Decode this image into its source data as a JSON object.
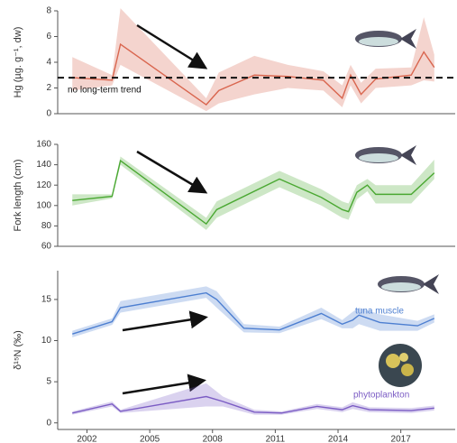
{
  "chart_data": [
    {
      "type": "line",
      "y_label": "Hg (µg. g⁻¹, dw)",
      "annotation": "no long-term trend",
      "hline": 2.8,
      "xlim": [
        2000.6,
        2019.6
      ],
      "ylim": [
        0,
        8
      ],
      "yticks": [
        0,
        2,
        4,
        6,
        8
      ],
      "series": [
        {
          "color": "#d9664f",
          "x": [
            2001.3,
            2003.2,
            2003.6,
            2007.7,
            2008.3,
            2010,
            2011.6,
            2013.3,
            2014.2,
            2014.6,
            2015.1,
            2015.8,
            2017.5,
            2018.1,
            2018.6
          ],
          "values": [
            2.8,
            2.6,
            5.4,
            0.7,
            1.8,
            3.0,
            2.9,
            2.6,
            1.2,
            3.0,
            1.5,
            2.7,
            3.0,
            4.8,
            3.6
          ],
          "lower": [
            1.8,
            2.2,
            3.8,
            0.2,
            0.8,
            1.5,
            2.0,
            1.8,
            0.5,
            2.2,
            0.8,
            2.0,
            2.2,
            2.6,
            2.5
          ],
          "upper": [
            4.4,
            3.0,
            8.2,
            1.2,
            3.2,
            4.5,
            3.8,
            3.3,
            2.2,
            3.8,
            2.4,
            3.5,
            3.6,
            7.5,
            4.6
          ]
        }
      ]
    },
    {
      "type": "line",
      "y_label": "Fork length (cm)",
      "xlim": [
        2000.6,
        2019.6
      ],
      "ylim": [
        60,
        160
      ],
      "yticks": [
        60,
        80,
        100,
        120,
        140,
        160
      ],
      "series": [
        {
          "color": "#4aa832",
          "x": [
            2001.3,
            2003.2,
            2003.6,
            2007.7,
            2008.2,
            2011.2,
            2013.2,
            2014.2,
            2014.5,
            2014.9,
            2015.4,
            2015.8,
            2017.5,
            2018.6
          ],
          "values": [
            105,
            109,
            144,
            82,
            96,
            126,
            108,
            96,
            94,
            113,
            120,
            111,
            111,
            132
          ],
          "lower": [
            100,
            107,
            140,
            76,
            88,
            118,
            100,
            88,
            86,
            106,
            114,
            102,
            102,
            126
          ],
          "upper": [
            111,
            111,
            148,
            88,
            104,
            134,
            116,
            104,
            102,
            120,
            126,
            120,
            120,
            145
          ]
        }
      ]
    },
    {
      "type": "line",
      "y_label": "δ¹⁵N (‰)",
      "xlim": [
        2000.6,
        2019.6
      ],
      "ylim": [
        -0.8,
        18.5
      ],
      "yticks": [
        0,
        5,
        10,
        15
      ],
      "xticks": [
        2002,
        2005,
        2008,
        2011,
        2014,
        2017
      ],
      "series": [
        {
          "name": "tuna muscle",
          "color": "#4d7fd1",
          "x": [
            2001.3,
            2003.2,
            2003.6,
            2007.7,
            2008.2,
            2009.5,
            2011.2,
            2013.2,
            2014.2,
            2014.7,
            2015,
            2016,
            2017.8,
            2018.6
          ],
          "values": [
            10.8,
            12.3,
            14,
            15.8,
            15,
            11.5,
            11.3,
            13.3,
            12,
            12.5,
            13.1,
            12.2,
            11.8,
            12.7
          ],
          "lower": [
            10.4,
            11.9,
            13.4,
            15.2,
            14,
            11,
            10.9,
            12.6,
            11.5,
            11.5,
            12,
            11.2,
            11.2,
            12.2
          ],
          "upper": [
            11.2,
            12.7,
            14.8,
            16.6,
            16,
            12,
            11.7,
            14,
            12.5,
            13.5,
            14,
            13.2,
            12.4,
            13.2
          ]
        },
        {
          "name": "phytoplankton",
          "color": "#7b5cc4",
          "x": [
            2001.3,
            2003.2,
            2003.6,
            2007.7,
            2008.5,
            2010,
            2011.3,
            2013,
            2014.2,
            2014.7,
            2015.5,
            2017.5,
            2018.6
          ],
          "values": [
            1.2,
            2.3,
            1.4,
            3.2,
            2.6,
            1.3,
            1.2,
            2.0,
            1.6,
            2.1,
            1.6,
            1.5,
            1.8
          ],
          "lower": [
            1.0,
            2.0,
            1.2,
            2.0,
            2.0,
            1.0,
            1.0,
            1.7,
            1.3,
            1.7,
            1.3,
            1.2,
            1.5
          ],
          "upper": [
            1.4,
            2.6,
            1.6,
            4.8,
            3.2,
            1.6,
            1.4,
            2.3,
            1.9,
            2.5,
            1.9,
            1.8,
            2.1
          ]
        }
      ]
    }
  ]
}
